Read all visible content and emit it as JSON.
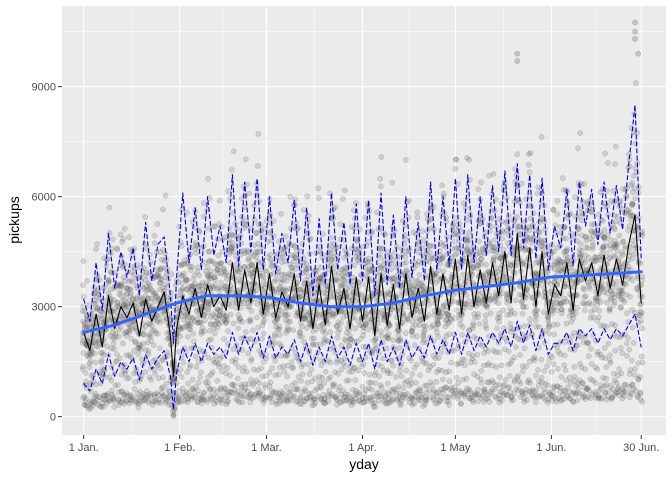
{
  "chart_data": {
    "type": "scatter",
    "xlabel": "yday",
    "ylabel": "pickups",
    "x_ticks": [
      {
        "label": "1 Jan.",
        "day": 0
      },
      {
        "label": "1 Feb.",
        "day": 31
      },
      {
        "label": "1 Mar.",
        "day": 59
      },
      {
        "label": "1 Apr.",
        "day": 90
      },
      {
        "label": "1 May",
        "day": 120
      },
      {
        "label": "1 Jun.",
        "day": 151
      },
      {
        "label": "30 Jun.",
        "day": 180
      }
    ],
    "y_ticks": [
      0,
      3000,
      6000,
      9000
    ],
    "xlim": [
      -7,
      188
    ],
    "ylim": [
      -500,
      11200
    ],
    "grid": true,
    "colors": {
      "panel": "#ebebeb",
      "grid": "#ffffff",
      "points": "#4d4d4d",
      "mean_line": "#000000",
      "band_line": "#0000ee",
      "smooth_line": "#3366ff"
    },
    "scatter_description_values": {
      "hourly_points_per_day": 24,
      "outlier_points": [
        {
          "day": 29,
          "y": 20
        },
        {
          "day": 29,
          "y": 60
        },
        {
          "day": 140,
          "y": 9900
        },
        {
          "day": 140,
          "y": 9700
        },
        {
          "day": 178,
          "y": 10750
        },
        {
          "day": 178,
          "y": 10500
        },
        {
          "day": 178,
          "y": 10300
        },
        {
          "day": 179,
          "y": 9900
        }
      ]
    },
    "series": [
      {
        "role": "daily-mean",
        "style": "solid-black",
        "x": [
          0,
          2,
          4,
          6,
          8,
          10,
          12,
          14,
          16,
          18,
          20,
          22,
          24,
          26,
          28,
          29,
          30,
          32,
          34,
          36,
          38,
          40,
          42,
          44,
          46,
          48,
          50,
          52,
          54,
          56,
          58,
          60,
          62,
          64,
          66,
          68,
          70,
          72,
          74,
          76,
          78,
          80,
          82,
          84,
          86,
          88,
          90,
          92,
          94,
          96,
          98,
          100,
          102,
          104,
          106,
          108,
          110,
          112,
          114,
          116,
          118,
          120,
          122,
          124,
          126,
          128,
          130,
          132,
          134,
          136,
          138,
          140,
          142,
          144,
          146,
          148,
          150,
          152,
          154,
          156,
          158,
          160,
          162,
          164,
          166,
          168,
          170,
          172,
          174,
          176,
          178,
          180
        ],
        "y": [
          2300,
          1800,
          2800,
          1900,
          3300,
          2400,
          3000,
          2700,
          3100,
          2200,
          3200,
          2600,
          3000,
          3400,
          2200,
          1100,
          2400,
          3300,
          2800,
          3500,
          2700,
          3600,
          3000,
          3300,
          2900,
          4200,
          2900,
          4000,
          3100,
          4200,
          2800,
          3900,
          2700,
          3400,
          3000,
          3900,
          2600,
          3700,
          2400,
          3600,
          2500,
          4100,
          2800,
          3500,
          2400,
          3800,
          2600,
          3800,
          2200,
          3900,
          2500,
          3600,
          2400,
          3900,
          2700,
          3500,
          2600,
          4100,
          2800,
          3900,
          2900,
          4300,
          2800,
          4400,
          3000,
          4000,
          3100,
          4200,
          3300,
          4500,
          3100,
          5000,
          3200,
          4600,
          3000,
          4500,
          2800,
          3600,
          3300,
          4200,
          2900,
          4300,
          3700,
          4200,
          3300,
          4400,
          3500,
          4300,
          3600,
          4700,
          5500,
          3100
        ]
      },
      {
        "role": "upper-band",
        "style": "dashed-blue",
        "x": [
          0,
          2,
          4,
          6,
          8,
          10,
          12,
          14,
          16,
          18,
          20,
          22,
          24,
          26,
          28,
          29,
          30,
          32,
          34,
          36,
          38,
          40,
          42,
          44,
          46,
          48,
          50,
          52,
          54,
          56,
          58,
          60,
          62,
          64,
          66,
          68,
          70,
          72,
          74,
          76,
          78,
          80,
          82,
          84,
          86,
          88,
          90,
          92,
          94,
          96,
          98,
          100,
          102,
          104,
          106,
          108,
          110,
          112,
          114,
          116,
          118,
          120,
          122,
          124,
          126,
          128,
          130,
          132,
          134,
          136,
          138,
          140,
          142,
          144,
          146,
          148,
          150,
          152,
          154,
          156,
          158,
          160,
          162,
          164,
          166,
          168,
          170,
          172,
          174,
          176,
          178,
          180
        ],
        "y": [
          3200,
          2600,
          4200,
          2900,
          5000,
          3500,
          4500,
          3800,
          4600,
          3300,
          5300,
          3700,
          4700,
          4900,
          3300,
          2000,
          3800,
          6100,
          4200,
          5700,
          4000,
          6000,
          4400,
          5200,
          4200,
          6600,
          4100,
          6400,
          4500,
          6500,
          4000,
          6000,
          3900,
          5000,
          4200,
          5900,
          3700,
          5700,
          3300,
          5400,
          3600,
          6100,
          4000,
          5300,
          3600,
          5800,
          3700,
          5900,
          3300,
          6100,
          3600,
          5500,
          3500,
          6000,
          3800,
          5300,
          3700,
          6400,
          4000,
          6000,
          4100,
          6500,
          4000,
          6600,
          4200,
          6000,
          4400,
          6300,
          4500,
          6700,
          4400,
          6900,
          4600,
          6600,
          4300,
          6500,
          4000,
          5200,
          4600,
          6200,
          4100,
          6400,
          5200,
          6200,
          4700,
          6400,
          5000,
          6300,
          5100,
          6900,
          8500,
          4300
        ]
      },
      {
        "role": "lower-band",
        "style": "dashed-blue",
        "x": [
          0,
          2,
          4,
          6,
          8,
          10,
          12,
          14,
          16,
          18,
          20,
          22,
          24,
          26,
          28,
          29,
          30,
          32,
          34,
          36,
          38,
          40,
          42,
          44,
          46,
          48,
          50,
          52,
          54,
          56,
          58,
          60,
          62,
          64,
          66,
          68,
          70,
          72,
          74,
          76,
          78,
          80,
          82,
          84,
          86,
          88,
          90,
          92,
          94,
          96,
          98,
          100,
          102,
          104,
          106,
          108,
          110,
          112,
          114,
          116,
          118,
          120,
          122,
          124,
          126,
          128,
          130,
          132,
          134,
          136,
          138,
          140,
          142,
          144,
          146,
          148,
          150,
          152,
          154,
          156,
          158,
          160,
          162,
          164,
          166,
          168,
          170,
          172,
          174,
          176,
          178,
          180
        ],
        "y": [
          900,
          700,
          1300,
          900,
          1700,
          1100,
          1500,
          1300,
          1600,
          1000,
          1700,
          1300,
          1600,
          1800,
          1100,
          200,
          1200,
          1900,
          1500,
          2000,
          1500,
          2000,
          1700,
          1900,
          1600,
          2300,
          1700,
          2200,
          1800,
          2300,
          1600,
          2200,
          1600,
          1900,
          1700,
          2100,
          1500,
          2000,
          1400,
          1900,
          1500,
          2200,
          1600,
          1900,
          1400,
          2000,
          1500,
          2000,
          1300,
          2100,
          1500,
          1900,
          1400,
          2100,
          1600,
          1900,
          1600,
          2200,
          1700,
          2100,
          1700,
          2300,
          1700,
          2300,
          1800,
          2200,
          1900,
          2300,
          2000,
          2400,
          1900,
          2600,
          2000,
          2500,
          1800,
          2400,
          1700,
          2000,
          2000,
          2300,
          1800,
          2400,
          2200,
          2400,
          2000,
          2400,
          2100,
          2400,
          2200,
          2500,
          2800,
          1900
        ]
      },
      {
        "role": "smooth",
        "style": "thick-blue",
        "x": [
          0,
          10,
          20,
          30,
          40,
          50,
          60,
          70,
          80,
          90,
          100,
          110,
          120,
          130,
          140,
          150,
          160,
          170,
          180
        ],
        "y": [
          2300,
          2500,
          2800,
          3100,
          3300,
          3300,
          3250,
          3100,
          3000,
          3000,
          3100,
          3300,
          3450,
          3550,
          3650,
          3800,
          3850,
          3900,
          3950
        ]
      }
    ]
  }
}
